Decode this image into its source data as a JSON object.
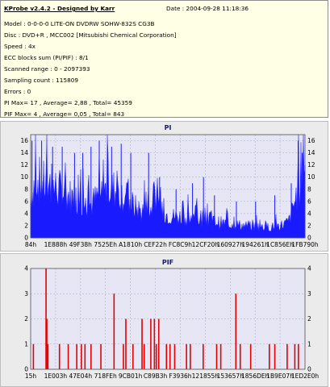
{
  "info": {
    "title": "KProbe v2.4.2 - Designed by Karr",
    "date": "Date : 2004-09-28 11:18:36",
    "lines": [
      "Model : 0-0-0-0 LITE-ON DVDRW SOHW-832S  CG3B",
      "Disc : DVD+R , MCC002 [Mitsubishi Chemical Corporation]",
      "Speed : 4x",
      "ECC blocks sum (PI/PIF) : 8/1",
      "Scanned range : 0 - 2097393",
      "Sampling count : 115809",
      "Errors : 0",
      "PI Max= 17 , Average= 2,88 , Total= 45359",
      "PIF Max= 4 , Average= 0,05 , Total= 843"
    ]
  },
  "colors": {
    "info_bg": "#ffffe6",
    "panel_bg": "#ebebeb",
    "plot_bg": "#e6e6f5",
    "pi_fill": "#1a1aff",
    "pif_bar": "#e60000",
    "title": "#1a1a66"
  },
  "chart_data": [
    {
      "type": "area",
      "title": "PI",
      "ylim": [
        0,
        17
      ],
      "yticks": [
        0,
        2,
        4,
        6,
        8,
        10,
        12,
        14,
        16
      ],
      "grid": true,
      "x_tick_labels": [
        "84h",
        "1E888h",
        "49F38h",
        "7525Eh",
        "A1810h",
        "CEF22h",
        "FC8C9h",
        "12CF20h",
        "160927h",
        "194261h",
        "1C856Eh",
        "1FB790h"
      ],
      "profile": [
        [
          0,
          7.0
        ],
        [
          2,
          10.0
        ],
        [
          4,
          9.0
        ],
        [
          6,
          8.5
        ],
        [
          8,
          8.5
        ],
        [
          10,
          8.0
        ],
        [
          12,
          7.5
        ],
        [
          14,
          7.0
        ],
        [
          16,
          6.5
        ],
        [
          18,
          6.0
        ],
        [
          20,
          5.5
        ],
        [
          22,
          5.5
        ],
        [
          24,
          6.5
        ],
        [
          26,
          7.5
        ],
        [
          28,
          8.0
        ],
        [
          30,
          8.0
        ],
        [
          32,
          7.5
        ],
        [
          34,
          7.0
        ],
        [
          36,
          6.0
        ],
        [
          38,
          5.0
        ],
        [
          40,
          4.5
        ],
        [
          42,
          4.5
        ],
        [
          44,
          5.0
        ],
        [
          46,
          4.8
        ],
        [
          48,
          4.2
        ],
        [
          50,
          3.8
        ],
        [
          52,
          3.5
        ],
        [
          54,
          3.5
        ],
        [
          56,
          3.5
        ],
        [
          58,
          3.2
        ],
        [
          60,
          3.0
        ],
        [
          62,
          3.0
        ],
        [
          64,
          3.2
        ],
        [
          66,
          3.0
        ],
        [
          68,
          2.6
        ],
        [
          70,
          2.4
        ],
        [
          72,
          2.4
        ],
        [
          74,
          2.3
        ],
        [
          76,
          2.1
        ],
        [
          78,
          2.0
        ],
        [
          80,
          1.9
        ],
        [
          82,
          1.9
        ],
        [
          84,
          1.8
        ],
        [
          86,
          1.8
        ],
        [
          88,
          1.8
        ],
        [
          90,
          2.0
        ],
        [
          92,
          2.2
        ],
        [
          94,
          2.6
        ],
        [
          96,
          5.5
        ],
        [
          98,
          9.0
        ],
        [
          100,
          11.0
        ]
      ],
      "spikes": [
        [
          0.5,
          16
        ],
        [
          4,
          16
        ],
        [
          8,
          15
        ],
        [
          11.5,
          15
        ],
        [
          16,
          14
        ],
        [
          19,
          14
        ],
        [
          22,
          15
        ],
        [
          25,
          16
        ],
        [
          29.5,
          15
        ],
        [
          33,
          15.5
        ],
        [
          36.5,
          14
        ],
        [
          43,
          14
        ],
        [
          47,
          10
        ],
        [
          53,
          8
        ],
        [
          59,
          9
        ],
        [
          63,
          10
        ],
        [
          67,
          7
        ],
        [
          75,
          6
        ],
        [
          82,
          6
        ],
        [
          89,
          7
        ],
        [
          95,
          9
        ],
        [
          97.5,
          16
        ],
        [
          99,
          14
        ],
        [
          100,
          12
        ]
      ]
    },
    {
      "type": "bar",
      "title": "PIF",
      "ylim": [
        0,
        4
      ],
      "yticks": [
        0,
        1,
        2,
        3,
        4
      ],
      "grid": true,
      "x_tick_labels": [
        "15h",
        "1E003h",
        "47E04h",
        "718FEh",
        "9CB01h",
        "C89B3h",
        "F3936h",
        "121855h",
        "153657h",
        "1856DEh",
        "1B9E07h",
        "1ED2E0h"
      ],
      "values": [
        [
          1.0,
          1
        ],
        [
          5.6,
          4
        ],
        [
          5.9,
          2
        ],
        [
          6.3,
          1
        ],
        [
          10.5,
          1
        ],
        [
          13.7,
          1
        ],
        [
          16.8,
          1
        ],
        [
          18.5,
          1
        ],
        [
          19.8,
          1
        ],
        [
          22.0,
          1
        ],
        [
          25.6,
          1
        ],
        [
          30.4,
          3
        ],
        [
          33.8,
          1
        ],
        [
          34.7,
          2
        ],
        [
          37.3,
          1
        ],
        [
          40.6,
          2
        ],
        [
          41.4,
          1
        ],
        [
          43.8,
          2
        ],
        [
          45.1,
          2
        ],
        [
          45.8,
          1
        ],
        [
          46.7,
          2
        ],
        [
          49.5,
          1
        ],
        [
          50.8,
          1
        ],
        [
          52.5,
          1
        ],
        [
          56.8,
          1
        ],
        [
          58.2,
          1
        ],
        [
          62.9,
          1
        ],
        [
          67.8,
          1
        ],
        [
          69.3,
          1
        ],
        [
          74.8,
          3
        ],
        [
          76.4,
          1
        ],
        [
          80.2,
          1
        ],
        [
          87.0,
          1
        ],
        [
          89.0,
          1
        ],
        [
          93.5,
          1
        ],
        [
          96.3,
          1
        ],
        [
          97.6,
          1
        ]
      ]
    }
  ]
}
